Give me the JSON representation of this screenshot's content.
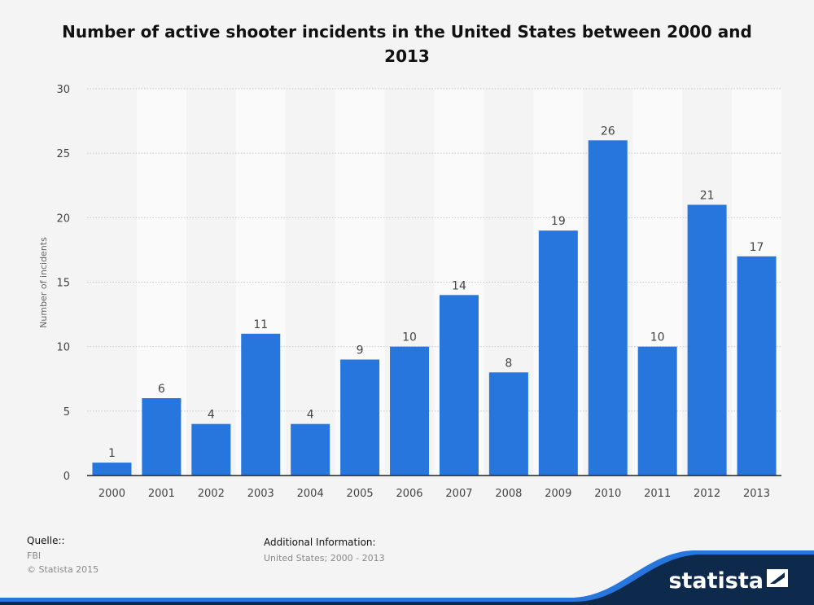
{
  "chart_data": {
    "type": "bar",
    "title": "Number of active shooter incidents in the United States between 2000 and 2013",
    "ylabel": "Number of incidents",
    "xlabel": "",
    "ylim": [
      0,
      30
    ],
    "yticks": [
      0,
      5,
      10,
      15,
      20,
      25,
      30
    ],
    "categories": [
      "2000",
      "2001",
      "2002",
      "2003",
      "2004",
      "2005",
      "2006",
      "2007",
      "2008",
      "2009",
      "2010",
      "2011",
      "2012",
      "2013"
    ],
    "values": [
      1,
      6,
      4,
      11,
      4,
      9,
      10,
      14,
      8,
      19,
      26,
      10,
      21,
      17
    ],
    "bar_color": "#2776de",
    "grid": true
  },
  "footer": {
    "source_heading": "Quelle::",
    "source_lines": [
      "FBI",
      "© Statista 2015"
    ],
    "info_heading": "Additional Information:",
    "info_text": "United States; 2000 - 2013"
  },
  "brand": {
    "logo_text": "statista",
    "logo_icon": "statista-logo-icon",
    "band_color": "#0d2a4c",
    "accent_color": "#2776de"
  }
}
